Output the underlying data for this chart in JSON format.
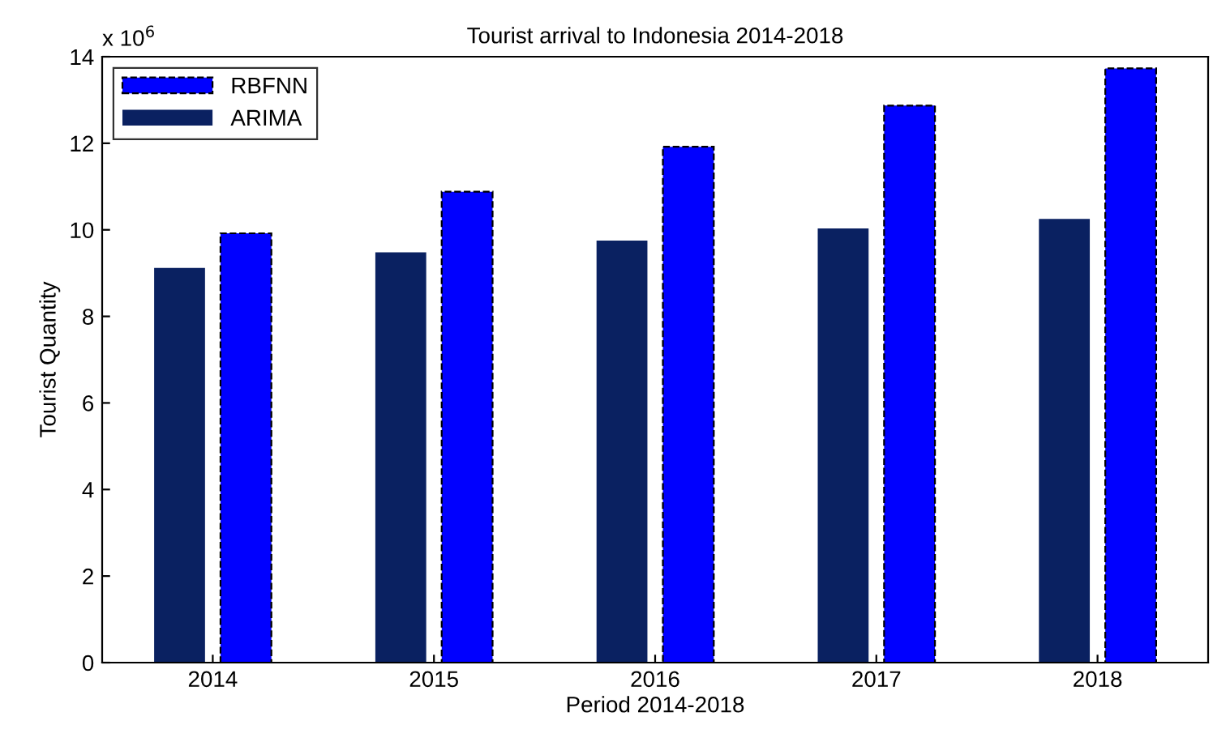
{
  "chart_data": {
    "type": "bar",
    "title": "Tourist arrival to Indonesia 2014-2018",
    "xlabel": "Period 2014-2018",
    "ylabel": "Tourist Quantity",
    "annotations": [
      "x 10$^{6}$"
    ],
    "categories": [
      "2014",
      "2015",
      "2016",
      "2017",
      "2018"
    ],
    "series": [
      {
        "name": "ARIMA",
        "color": "#0a2161",
        "values": [
          9.12,
          9.48,
          9.75,
          10.03,
          10.25
        ]
      },
      {
        "name": "RBFNN",
        "color": "#0000ff",
        "line_style": "dashed",
        "values": [
          9.92,
          10.88,
          11.92,
          12.87,
          13.73
        ]
      }
    ],
    "ylim": [
      0,
      14
    ],
    "yticks": [
      0,
      2,
      4,
      6,
      8,
      10,
      12,
      14
    ],
    "grid": false,
    "legend": "top left"
  }
}
